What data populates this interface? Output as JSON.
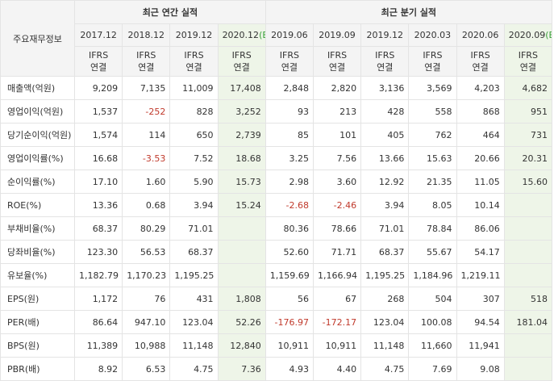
{
  "header": {
    "row_label": "주요재무정보",
    "annual_title": "최근 연간 실적",
    "quarterly_title": "최근 분기 실적",
    "annual_periods": [
      {
        "main": "2017.12",
        "paren": ""
      },
      {
        "main": "2018.12",
        "paren": ""
      },
      {
        "main": "2019.12",
        "paren": ""
      },
      {
        "main": "2020.12",
        "paren": "(E)"
      }
    ],
    "quarterly_periods": [
      {
        "main": "2019.06",
        "paren": ""
      },
      {
        "main": "2019.09",
        "paren": ""
      },
      {
        "main": "2019.12",
        "paren": ""
      },
      {
        "main": "2020.03",
        "paren": ""
      },
      {
        "main": "2020.06",
        "paren": ""
      },
      {
        "main": "2020.09",
        "paren": "(E)"
      }
    ],
    "standard_line1": "IFRS",
    "standard_line2": "연결"
  },
  "rows": [
    {
      "label": "매출액(억원)",
      "values": [
        "9,209",
        "7,135",
        "11,009",
        "17,408",
        "2,848",
        "2,820",
        "3,136",
        "3,569",
        "4,203",
        "4,682"
      ]
    },
    {
      "label": "영업이익(억원)",
      "values": [
        "1,537",
        "-252",
        "828",
        "3,252",
        "93",
        "213",
        "428",
        "558",
        "868",
        "951"
      ]
    },
    {
      "label": "당기순이익(억원)",
      "values": [
        "1,574",
        "114",
        "650",
        "2,739",
        "85",
        "101",
        "405",
        "762",
        "464",
        "731"
      ]
    },
    {
      "label": "영업이익률(%)",
      "values": [
        "16.68",
        "-3.53",
        "7.52",
        "18.68",
        "3.25",
        "7.56",
        "13.66",
        "15.63",
        "20.66",
        "20.31"
      ]
    },
    {
      "label": "순이익률(%)",
      "values": [
        "17.10",
        "1.60",
        "5.90",
        "15.73",
        "2.98",
        "3.60",
        "12.92",
        "21.35",
        "11.05",
        "15.60"
      ]
    },
    {
      "label": "ROE(%)",
      "values": [
        "13.36",
        "0.68",
        "3.94",
        "15.24",
        "-2.68",
        "-2.46",
        "3.94",
        "8.05",
        "10.14",
        ""
      ]
    },
    {
      "label": "부채비율(%)",
      "values": [
        "68.37",
        "80.29",
        "71.01",
        "",
        "80.36",
        "78.66",
        "71.01",
        "78.84",
        "86.06",
        ""
      ]
    },
    {
      "label": "당좌비율(%)",
      "values": [
        "123.30",
        "56.53",
        "68.37",
        "",
        "52.60",
        "71.71",
        "68.37",
        "55.67",
        "54.17",
        ""
      ]
    },
    {
      "label": "유보율(%)",
      "values": [
        "1,182.79",
        "1,170.23",
        "1,195.25",
        "",
        "1,159.69",
        "1,166.94",
        "1,195.25",
        "1,184.96",
        "1,219.11",
        ""
      ]
    },
    {
      "label": "EPS(원)",
      "values": [
        "1,172",
        "76",
        "431",
        "1,808",
        "56",
        "67",
        "268",
        "504",
        "307",
        "518"
      ]
    },
    {
      "label": "PER(배)",
      "values": [
        "86.64",
        "947.10",
        "123.04",
        "52.26",
        "-176.97",
        "-172.17",
        "123.04",
        "100.08",
        "94.54",
        "181.04"
      ]
    },
    {
      "label": "BPS(원)",
      "values": [
        "11,389",
        "10,988",
        "11,148",
        "12,840",
        "10,911",
        "10,911",
        "11,148",
        "11,660",
        "11,941",
        ""
      ]
    },
    {
      "label": "PBR(배)",
      "values": [
        "8.92",
        "6.53",
        "4.75",
        "7.36",
        "4.93",
        "4.40",
        "4.75",
        "7.69",
        "9.08",
        ""
      ]
    }
  ],
  "colors": {
    "header_bg": "#f4f4f4",
    "estimate_bg": "#eef5e8",
    "standard_text": "#e07000",
    "estimate_paren": "#3aa03a",
    "negative_text": "#c0392b",
    "border": "#e4e4e4"
  }
}
